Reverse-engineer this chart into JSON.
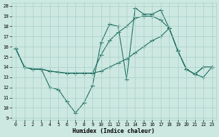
{
  "xlabel": "Humidex (Indice chaleur)",
  "xlim": [
    -0.5,
    23.5
  ],
  "ylim": [
    8.8,
    20.3
  ],
  "yticks": [
    9,
    10,
    11,
    12,
    13,
    14,
    15,
    16,
    17,
    18,
    19,
    20
  ],
  "xticks": [
    0,
    1,
    2,
    3,
    4,
    5,
    6,
    7,
    8,
    9,
    10,
    11,
    12,
    13,
    14,
    15,
    16,
    17,
    18,
    19,
    20,
    21,
    22,
    23
  ],
  "bg_color": "#cce8e0",
  "grid_color": "#a8cfc8",
  "line_color": "#1a6b60",
  "line1_x": [
    0,
    1,
    2,
    3,
    4,
    5,
    6,
    7,
    8,
    9,
    10,
    11,
    12,
    13,
    14,
    15,
    16,
    17,
    18,
    19,
    20,
    21,
    22,
    23
  ],
  "line1_y": [
    15.8,
    14.0,
    13.8,
    13.8,
    12.0,
    11.8,
    10.6,
    9.5,
    10.5,
    12.2,
    16.4,
    18.2,
    18.0,
    12.8,
    19.8,
    19.2,
    19.2,
    19.6,
    17.8,
    15.6,
    13.8,
    13.3,
    13.0,
    14.0
  ],
  "line2_x": [
    0,
    1,
    2,
    3,
    4,
    5,
    6,
    7,
    8,
    9,
    10,
    11,
    12,
    13,
    14,
    15,
    16,
    17,
    18,
    19,
    20,
    21,
    22,
    23
  ],
  "line2_y": [
    15.8,
    14.0,
    13.8,
    13.8,
    13.6,
    13.5,
    13.4,
    13.4,
    13.4,
    13.4,
    13.6,
    14.0,
    14.4,
    14.8,
    15.4,
    16.0,
    16.6,
    17.0,
    17.8,
    15.6,
    13.8,
    13.3,
    14.0,
    14.0
  ],
  "line3_x": [
    0,
    1,
    2,
    3,
    4,
    5,
    6,
    7,
    8,
    9,
    10,
    11,
    12,
    13,
    14,
    15,
    16,
    17,
    18,
    19,
    20,
    21,
    22,
    23
  ],
  "line3_y": [
    15.8,
    14.0,
    13.8,
    13.8,
    13.6,
    13.5,
    13.4,
    13.4,
    13.4,
    13.4,
    15.2,
    16.6,
    17.4,
    18.0,
    18.8,
    19.0,
    19.0,
    18.6,
    17.8,
    15.6,
    13.8,
    13.3,
    14.0,
    14.0
  ]
}
